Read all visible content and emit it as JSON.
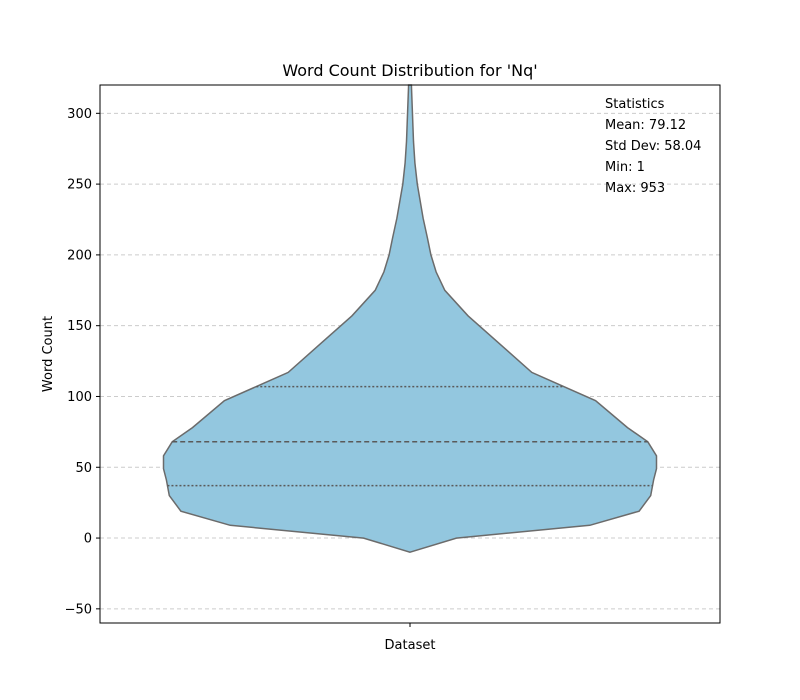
{
  "chart_data": {
    "type": "violin",
    "title": "Word Count Distribution for 'Nq'",
    "xlabel": "Dataset",
    "ylabel": "Word Count",
    "categories": [
      ""
    ],
    "ylim": [
      -60,
      320
    ],
    "yticks": [
      -50,
      0,
      50,
      100,
      150,
      200,
      250,
      300
    ],
    "ytick_labels": [
      "−50",
      "0",
      "50",
      "100",
      "150",
      "200",
      "250",
      "300"
    ],
    "grid": {
      "axis": "y",
      "style": "dashed"
    },
    "quartiles": {
      "q1": 37,
      "median": 68,
      "q3": 107
    },
    "density_profile": {
      "y": [
        -10,
        0,
        9,
        19,
        30,
        41,
        49,
        58,
        68,
        78,
        97,
        117,
        137,
        157,
        175,
        188,
        200,
        212,
        226,
        250,
        265,
        280,
        320
      ],
      "relative_width": [
        0.0,
        0.16,
        0.62,
        0.79,
        0.83,
        0.84,
        0.85,
        0.85,
        0.82,
        0.75,
        0.64,
        0.42,
        0.31,
        0.2,
        0.12,
        0.09,
        0.072,
        0.06,
        0.045,
        0.025,
        0.017,
        0.012,
        0.005
      ]
    },
    "stats_box": {
      "heading": "Statistics",
      "lines": [
        "Mean: 79.12",
        "Std Dev: 58.04",
        "Min: 1",
        "Max: 953"
      ]
    },
    "colors": {
      "fill": "#93c7df",
      "outline": "#6b6b6b",
      "grid": "#cccccc"
    }
  }
}
